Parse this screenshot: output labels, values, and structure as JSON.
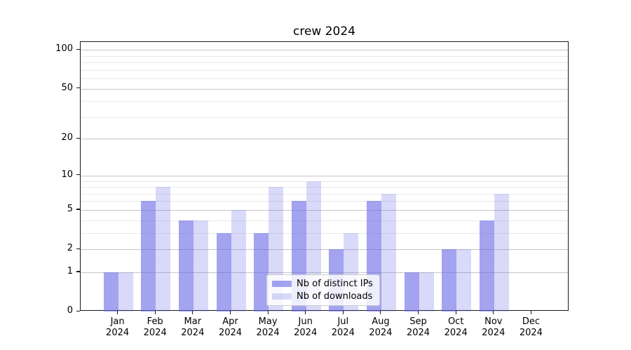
{
  "chart_data": {
    "type": "bar",
    "title": "crew 2024",
    "categories": [
      "Jan 2024",
      "Feb 2024",
      "Mar 2024",
      "Apr 2024",
      "May 2024",
      "Jun 2024",
      "Jul 2024",
      "Aug 2024",
      "Sep 2024",
      "Oct 2024",
      "Nov 2024",
      "Dec 2024"
    ],
    "series": [
      {
        "name": "Nb of distinct IPs",
        "color": "rgba(102,102,230,0.6)",
        "values": [
          1,
          6,
          4,
          3,
          3,
          6,
          2,
          6,
          1,
          2,
          4,
          0
        ]
      },
      {
        "name": "Nb of downloads",
        "color": "rgba(102,102,230,0.25)",
        "values": [
          1,
          8,
          4,
          5,
          8,
          9,
          3,
          7,
          1,
          2,
          7,
          0
        ]
      }
    ],
    "xlabel": "",
    "ylabel": "",
    "yscale": "log1p",
    "ylim": [
      0,
      115
    ],
    "yticks_major": [
      0,
      1,
      2,
      5,
      10,
      20,
      50,
      100
    ],
    "yticks_minor": [
      3,
      4,
      6,
      7,
      8,
      9,
      30,
      40,
      60,
      70,
      80,
      90
    ],
    "grid": "horizontal",
    "legend_position": "lower-center"
  }
}
